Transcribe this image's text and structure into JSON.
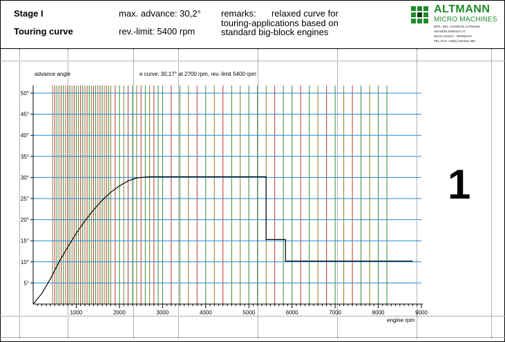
{
  "header": {
    "stage": "Stage I",
    "curve_name": "Touring curve",
    "max_advance": "max. advance: 30,2°",
    "rev_limit": "rev.-limit:  5400 rpm",
    "remarks_label": "remarks:",
    "remarks_line1": "relaxed curve for",
    "remarks_line2": "touring-applications based on",
    "remarks_line3": "standard big-block engines"
  },
  "logo": {
    "name": "ALTMANN",
    "subtitle": "MICRO MACHINES",
    "line1": "DIPL.-ING. CHARLES ALTMANN",
    "line2": "AM MÜHLENBACH 27",
    "line3": "82431 XXXXX - GERMANY",
    "line4": "TEL./FAX +49(0) 2324/54 390",
    "green": "#1f8a2a"
  },
  "page_number": "1",
  "chart_data": {
    "type": "line",
    "title": "e curve: 30,17° at 2700 rpm, rev.-limit 5400 rpm",
    "ylabel": "advance angle",
    "xlabel": "engine rpm",
    "xlim": [
      0,
      9000
    ],
    "ylim": [
      0,
      50
    ],
    "x_ticks": [
      1000,
      2000,
      3000,
      4000,
      5000,
      6000,
      7000,
      8000,
      9000
    ],
    "x_tick_labels": [
      "1000",
      "2000",
      "3000",
      "4000",
      "5000",
      "6000",
      "7000",
      "8000",
      "9000"
    ],
    "y_ticks": [
      5,
      10,
      15,
      20,
      25,
      30,
      35,
      40,
      45,
      50
    ],
    "y_tick_labels": [
      "5°",
      "10°",
      "15°",
      "20°",
      "25°",
      "30°",
      "35°",
      "40°",
      "45°",
      "50°"
    ],
    "grid": true,
    "series": [
      {
        "x": [
          0,
          200,
          400,
          600,
          800,
          1000,
          1200,
          1400,
          1600,
          1800,
          2000,
          2200,
          2400,
          2600,
          2700,
          5400,
          5400,
          5850,
          5850,
          8800
        ],
        "y": [
          0,
          2.5,
          6,
          10,
          13.5,
          16.8,
          19.7,
          22.3,
          24.6,
          26.5,
          28,
          29.2,
          29.9,
          30.1,
          30.17,
          30.17,
          15.3,
          15.3,
          10.2,
          10.2
        ]
      }
    ],
    "colors": {
      "grid_horizontal": "#1e88d8",
      "grid_green": "#2e8b2e",
      "grid_red": "#c03030",
      "grid_olive": "#8a7a20",
      "curve": "#000000"
    }
  }
}
